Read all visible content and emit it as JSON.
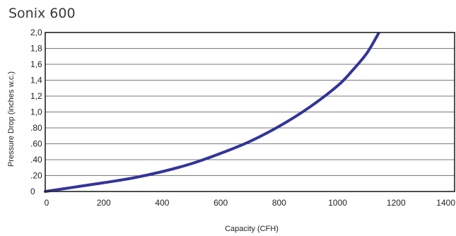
{
  "chart_data": {
    "type": "line",
    "title": "Sonix 600",
    "xlabel": "Capacity (CFH)",
    "ylabel": "Pressure Drop (inches w.c.)",
    "xlim": [
      0,
      1400
    ],
    "ylim": [
      0,
      2.0
    ],
    "x_ticks": [
      0,
      200,
      400,
      600,
      800,
      1000,
      1200,
      1400
    ],
    "x_tick_labels": [
      "0",
      "200",
      "400",
      "600",
      "800",
      "1000",
      "1200",
      "1400"
    ],
    "y_ticks": [
      0,
      0.2,
      0.4,
      0.6,
      0.8,
      1.0,
      1.2,
      1.4,
      1.6,
      1.8,
      2.0
    ],
    "y_tick_labels": [
      "0",
      ".20",
      ".40",
      ".60",
      ".80",
      "1,0",
      "1,2",
      "1,4",
      "1,6",
      "1,8",
      "2,0"
    ],
    "grid": true,
    "line_color": "#33349a",
    "series": [
      {
        "x": [
          0,
          100,
          200,
          300,
          400,
          500,
          600,
          700,
          800,
          900,
          1000,
          1050,
          1100,
          1140
        ],
        "y": [
          0,
          0.055,
          0.11,
          0.17,
          0.25,
          0.35,
          0.48,
          0.63,
          0.82,
          1.05,
          1.33,
          1.52,
          1.74,
          1.99
        ]
      }
    ]
  }
}
